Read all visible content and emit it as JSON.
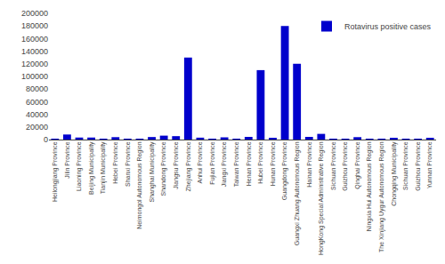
{
  "chart_data": {
    "type": "bar",
    "categories": [
      "Heilongjiang Province",
      "Jilin Province",
      "Liaoning Province",
      "Beijing Municipality",
      "Tianjin Municipality",
      "Hebei Province",
      "Shanxi Province",
      "Neimongol Autonomous Region",
      "Shanghai Municipality",
      "Shandong Province",
      "Jiangsu Province",
      "Zhejiang Province",
      "Anhui Province",
      "Fujian Province",
      "Jiangxi Province",
      "Taiwan Province",
      "Henan Province",
      "Hubei Province",
      "Hunan Province",
      "Guangdong Province",
      "Guangxi Zhuang Autonomous Region",
      "Hainan Province",
      "HongKong Special Administrative Region",
      "Sichuan Province",
      "Guizhou Province",
      "Qinghai Province",
      "Ningxia Hui Autonomous Region",
      "The Xinjiang Uygur Autonomous Region",
      "Chongqing Municipality",
      "Sichuan Province",
      "Guizhou Province",
      "Yunnan Province"
    ],
    "series": [
      {
        "name": "Rotavirus positive cases",
        "color": "#0000CC",
        "values": [
          500,
          8000,
          3200,
          3200,
          800,
          3800,
          300,
          900,
          4000,
          6200,
          5400,
          130000,
          3000,
          900,
          3500,
          1300,
          4200,
          110000,
          2000,
          180000,
          120000,
          4200,
          9000,
          300,
          200,
          3800,
          200,
          100,
          2000,
          700,
          1100,
          2000
        ]
      }
    ],
    "ylim": [
      0,
      200000
    ],
    "yticks": [
      0,
      20000,
      40000,
      60000,
      80000,
      100000,
      120000,
      140000,
      160000,
      180000,
      200000
    ],
    "grid": false,
    "legend": "upper right"
  }
}
